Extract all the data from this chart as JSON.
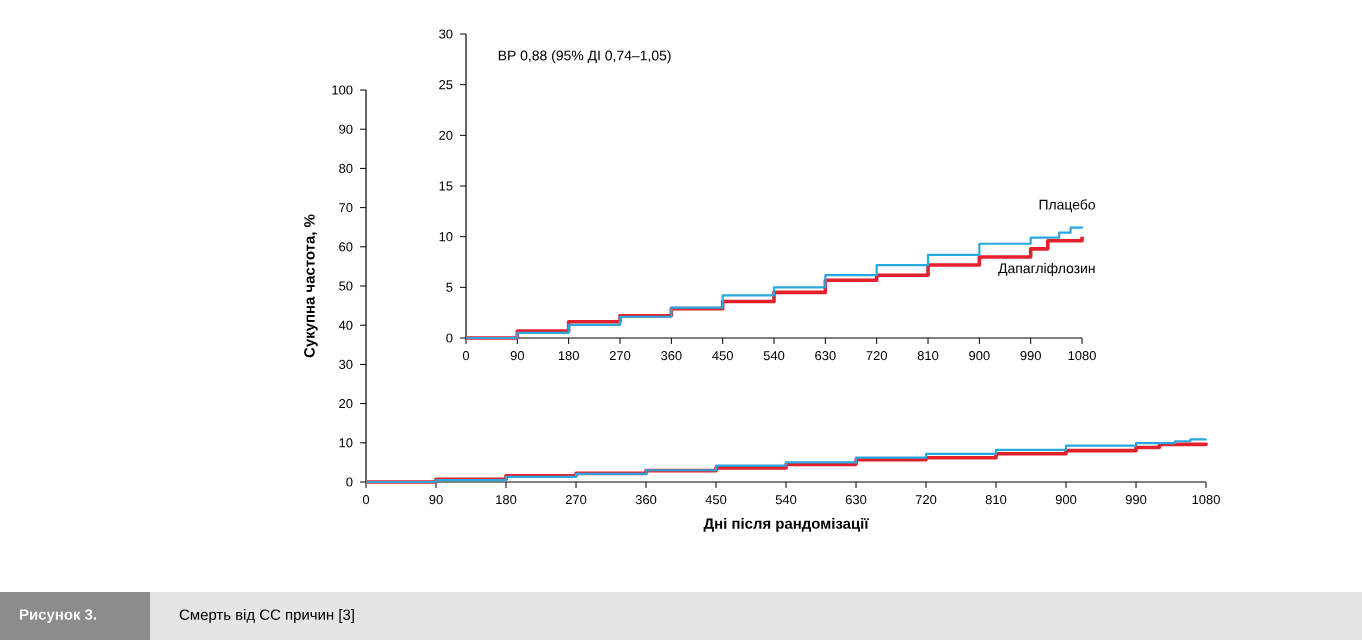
{
  "chart_data": [
    {
      "type": "step",
      "xlabel": "Дні після рандомізації",
      "ylabel": "Сукупна частота, %",
      "xlim": [
        0,
        1080
      ],
      "ylim": [
        0,
        100
      ],
      "xticks": [
        0,
        90,
        180,
        270,
        360,
        450,
        540,
        630,
        720,
        810,
        900,
        990,
        1080
      ],
      "yticks": [
        0,
        10,
        20,
        30,
        40,
        50,
        60,
        70,
        80,
        90,
        100
      ],
      "series": [
        {
          "color": "#29a8e0",
          "x": [
            0,
            90,
            180,
            270,
            360,
            450,
            540,
            630,
            720,
            810,
            900,
            990,
            1040,
            1060,
            1080
          ],
          "values": [
            0,
            0.5,
            1.3,
            2.1,
            3.0,
            4.2,
            5.0,
            6.2,
            7.2,
            8.2,
            9.3,
            9.9,
            10.4,
            10.9,
            11.0
          ]
        },
        {
          "color": "#e3212d",
          "x": [
            0,
            90,
            180,
            270,
            360,
            450,
            540,
            630,
            720,
            810,
            900,
            990,
            1020,
            1075,
            1080
          ],
          "values": [
            0,
            0.7,
            1.6,
            2.2,
            2.9,
            3.6,
            4.5,
            5.7,
            6.2,
            7.2,
            8.0,
            8.8,
            9.6,
            9.6,
            10.0
          ]
        }
      ],
      "annotations": [
        "Рисунок 3.",
        "Смерть від СС причин [3]"
      ]
    },
    {
      "type": "step",
      "xlim": [
        0,
        1080
      ],
      "ylim": [
        0,
        30
      ],
      "xticks": [
        0,
        90,
        180,
        270,
        360,
        450,
        540,
        630,
        720,
        810,
        900,
        990,
        1080
      ],
      "yticks": [
        0,
        5,
        10,
        15,
        20,
        25,
        30
      ],
      "series": [
        {
          "name": "Плацебо",
          "color": "#29a8e0",
          "x": [
            0,
            90,
            180,
            270,
            360,
            450,
            540,
            630,
            720,
            810,
            900,
            990,
            1040,
            1060,
            1080
          ],
          "values": [
            0,
            0.5,
            1.3,
            2.1,
            3.0,
            4.2,
            5.0,
            6.2,
            7.2,
            8.2,
            9.3,
            9.9,
            10.4,
            10.9,
            11.0
          ]
        },
        {
          "name": "Дапагліфлозин",
          "color": "#e3212d",
          "x": [
            0,
            90,
            180,
            270,
            360,
            450,
            540,
            630,
            720,
            810,
            900,
            990,
            1020,
            1075,
            1080
          ],
          "values": [
            0,
            0.7,
            1.6,
            2.2,
            2.9,
            3.6,
            4.5,
            5.7,
            6.2,
            7.2,
            8.0,
            8.8,
            9.6,
            9.6,
            10.0
          ]
        }
      ],
      "annotations": [
        "ВР 0,88 (95% ДІ 0,74–1,05)"
      ]
    }
  ]
}
